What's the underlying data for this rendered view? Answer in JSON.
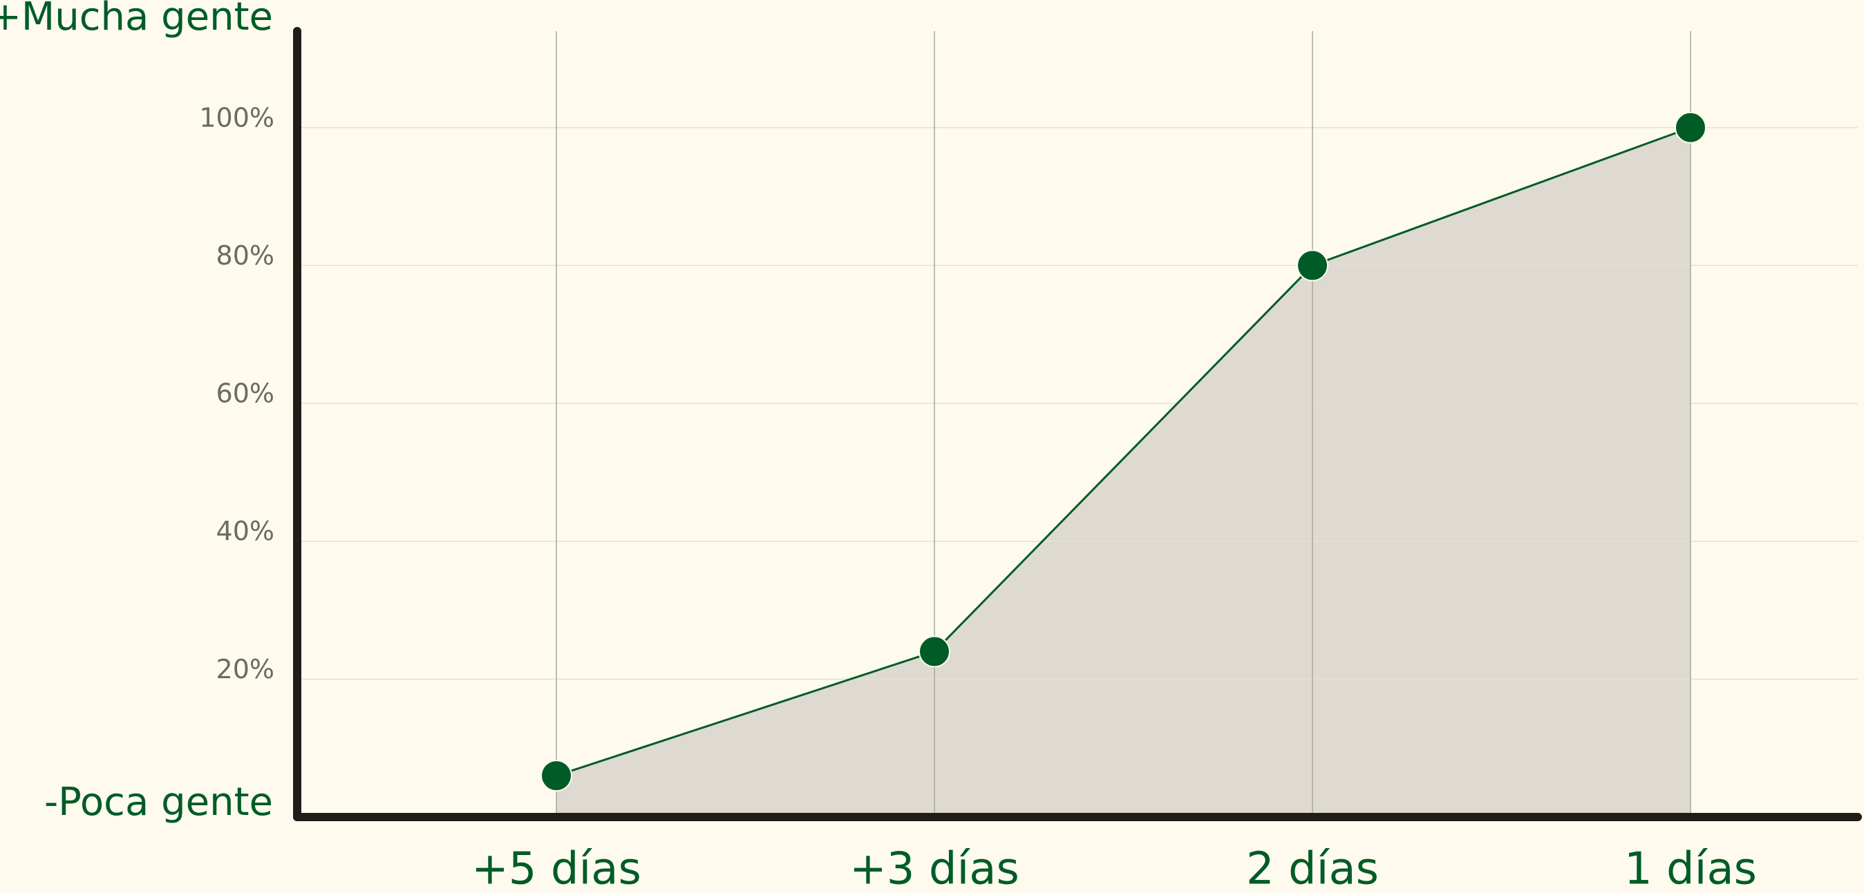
{
  "chart_data": {
    "type": "area",
    "top_annotation": "+Mucha gente",
    "bottom_annotation": "-Poca gente",
    "categories": [
      "+5 días",
      "+3 días",
      "2 días",
      "1 días"
    ],
    "values": [
      6,
      24,
      80,
      100
    ],
    "color": "#005c26",
    "fill_color": "#dedad2",
    "ylim": [
      0,
      114
    ],
    "yticks": [
      {
        "value": 20,
        "label": "20%"
      },
      {
        "value": 40,
        "label": "40%"
      },
      {
        "value": 60,
        "label": "60%"
      },
      {
        "value": 80,
        "label": "80%"
      },
      {
        "value": 100,
        "label": "100%"
      }
    ],
    "grid": true
  }
}
